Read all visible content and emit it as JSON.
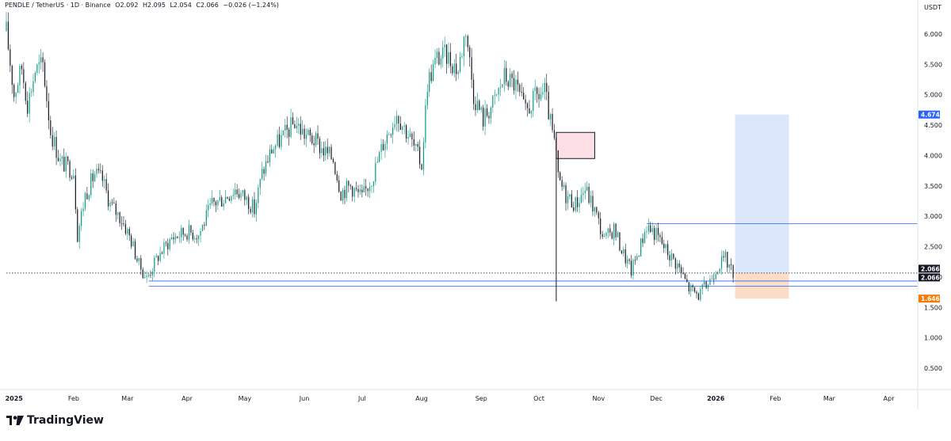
{
  "header": {
    "symbol": "PENDLE / TetherUS · 1D · Binance",
    "open": "O2.092",
    "high": "H2.095",
    "low": "L2.054",
    "close": "C2.066",
    "change": "−0.026 (−1.24%)",
    "unit": "USDT"
  },
  "brand": {
    "name": "TradingView"
  },
  "colors": {
    "up": "#089981",
    "down": "#131722",
    "hline": "#2962ff",
    "target_zone": "#dbe8fb",
    "stop_zone": "#fbdcc6",
    "supply_box": "#fde0e6",
    "target_badge": "#2962ff",
    "stop_badge": "#f57c00"
  },
  "chart_data": {
    "type": "candlestick",
    "title": "PENDLE / TetherUS · 1D · Binance",
    "xlabel": "",
    "ylabel": "USDT",
    "x_tick_labels": [
      "2025",
      "Feb",
      "Mar",
      "Apr",
      "May",
      "Jun",
      "Jul",
      "Aug",
      "Sep",
      "Oct",
      "Nov",
      "Dec",
      "2026",
      "Feb",
      "Mar",
      "Apr"
    ],
    "y_tick_labels": [
      "6.000",
      "5.500",
      "5.000",
      "4.500",
      "4.000",
      "3.500",
      "3.000",
      "2.500",
      "2.000",
      "1.500",
      "1.000",
      "0.500"
    ],
    "ylim": [
      0.15,
      6.35
    ],
    "x_range": [
      "2024-12-28",
      "2026-04-16"
    ],
    "grid": false,
    "series": [
      {
        "type": "close_path",
        "points": [
          [
            "2024-12-28",
            6.05
          ],
          [
            "2025-01-01",
            5.0
          ],
          [
            "2025-01-05",
            5.45
          ],
          [
            "2025-01-08",
            4.85
          ],
          [
            "2025-01-12",
            5.4
          ],
          [
            "2025-01-16",
            5.5
          ],
          [
            "2025-01-20",
            4.4
          ],
          [
            "2025-01-25",
            3.9
          ],
          [
            "2025-02-01",
            3.75
          ],
          [
            "2025-02-03",
            2.7
          ],
          [
            "2025-02-07",
            3.35
          ],
          [
            "2025-02-12",
            3.7
          ],
          [
            "2025-02-16",
            3.6
          ],
          [
            "2025-02-20",
            3.2
          ],
          [
            "2025-02-26",
            2.95
          ],
          [
            "2025-03-03",
            2.6
          ],
          [
            "2025-03-07",
            2.2
          ],
          [
            "2025-03-11",
            1.98
          ],
          [
            "2025-03-17",
            2.35
          ],
          [
            "2025-03-24",
            2.65
          ],
          [
            "2025-04-01",
            2.75
          ],
          [
            "2025-04-07",
            2.7
          ],
          [
            "2025-04-14",
            3.2
          ],
          [
            "2025-04-20",
            3.3
          ],
          [
            "2025-04-26",
            3.45
          ],
          [
            "2025-05-03",
            3.25
          ],
          [
            "2025-05-06",
            3.1
          ],
          [
            "2025-05-10",
            3.7
          ],
          [
            "2025-05-15",
            4.1
          ],
          [
            "2025-05-22",
            4.35
          ],
          [
            "2025-05-27",
            4.55
          ],
          [
            "2025-06-01",
            4.35
          ],
          [
            "2025-06-06",
            4.25
          ],
          [
            "2025-06-12",
            4.05
          ],
          [
            "2025-06-16",
            3.95
          ],
          [
            "2025-06-20",
            3.4
          ],
          [
            "2025-06-25",
            3.5
          ],
          [
            "2025-07-01",
            3.3
          ],
          [
            "2025-07-07",
            3.7
          ],
          [
            "2025-07-12",
            4.2
          ],
          [
            "2025-07-19",
            4.7
          ],
          [
            "2025-07-25",
            4.35
          ],
          [
            "2025-08-01",
            3.85
          ],
          [
            "2025-08-04",
            5.2
          ],
          [
            "2025-08-09",
            5.6
          ],
          [
            "2025-08-14",
            5.65
          ],
          [
            "2025-08-20",
            5.4
          ],
          [
            "2025-08-24",
            6.1
          ],
          [
            "2025-08-28",
            5.0
          ],
          [
            "2025-09-02",
            4.6
          ],
          [
            "2025-09-08",
            4.9
          ],
          [
            "2025-09-13",
            5.3
          ],
          [
            "2025-09-19",
            5.15
          ],
          [
            "2025-09-24",
            4.7
          ],
          [
            "2025-09-29",
            4.95
          ],
          [
            "2025-10-04",
            5.05
          ],
          [
            "2025-10-10",
            4.0
          ],
          [
            "2025-10-11",
            3.6
          ],
          [
            "2025-10-15",
            3.35
          ],
          [
            "2025-10-20",
            3.2
          ],
          [
            "2025-10-25",
            3.45
          ],
          [
            "2025-10-30",
            3.1
          ],
          [
            "2025-11-04",
            2.6
          ],
          [
            "2025-11-09",
            2.8
          ],
          [
            "2025-11-13",
            2.45
          ],
          [
            "2025-11-18",
            2.1
          ],
          [
            "2025-11-22",
            2.45
          ],
          [
            "2025-11-26",
            2.85
          ],
          [
            "2025-12-01",
            2.7
          ],
          [
            "2025-12-06",
            2.45
          ],
          [
            "2025-12-12",
            2.2
          ],
          [
            "2025-12-18",
            1.82
          ],
          [
            "2025-12-23",
            1.7
          ],
          [
            "2025-12-28",
            1.9
          ],
          [
            "2026-01-02",
            2.2
          ],
          [
            "2026-01-06",
            2.3
          ],
          [
            "2026-01-10",
            2.066
          ]
        ]
      }
    ],
    "annotations": {
      "last_price": 2.066,
      "price_labels": [
        "4.674",
        "2.066",
        "2.066",
        "1.646"
      ],
      "target": 4.674,
      "stop": 1.646,
      "position_start": "2026-01-11",
      "position_end": "2026-02-08",
      "horizontal_lines": [
        {
          "y": 2.88,
          "from": "2025-11-26",
          "to": "2026-04-16"
        },
        {
          "y": 1.935,
          "from": "2025-03-12",
          "to": "2026-04-16"
        },
        {
          "y": 1.85,
          "from": "2025-03-12",
          "to": "2026-04-16"
        }
      ],
      "supply_zone": {
        "from": "2025-10-10",
        "to": "2025-10-30",
        "y_low": 3.95,
        "y_high": 4.38
      },
      "wick_low": {
        "date": "2025-10-10",
        "y": 1.6
      }
    }
  }
}
